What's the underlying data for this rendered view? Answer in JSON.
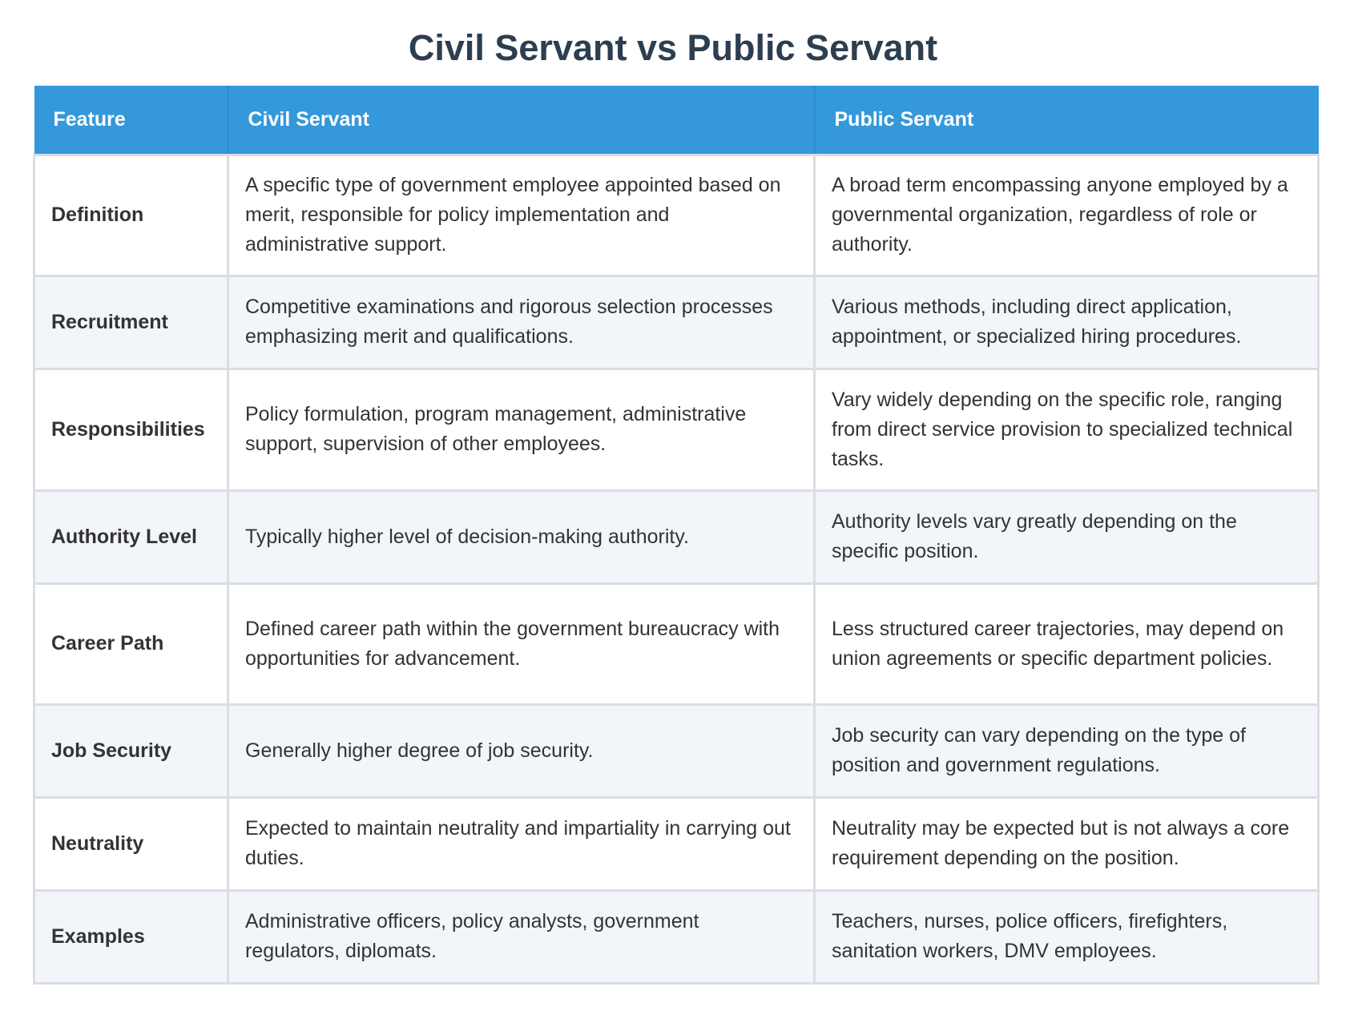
{
  "title": "Civil Servant vs Public Servant",
  "table": {
    "headers": [
      "Feature",
      "Civil Servant",
      "Public Servant"
    ],
    "rows": [
      {
        "feature": "Definition",
        "civil": "A specific type of government employee appointed based on merit, responsible for policy implementation and administrative support.",
        "public": "A broad term encompassing anyone employed by a governmental organization, regardless of role or authority."
      },
      {
        "feature": "Recruitment",
        "civil": "Competitive examinations and rigorous selection processes emphasizing merit and qualifications.",
        "public": "Various methods, including direct application, appointment, or specialized hiring procedures."
      },
      {
        "feature": "Responsibilities",
        "civil": "Policy formulation, program management, administrative support, supervision of other employees.",
        "public": "Vary widely depending on the specific role, ranging from direct service provision to specialized technical tasks."
      },
      {
        "feature": "Authority Level",
        "civil": "Typically higher level of decision-making authority.",
        "public": "Authority levels vary greatly depending on the specific position."
      },
      {
        "feature": "Career Path",
        "civil": "Defined career path within the government bureaucracy with opportunities for advancement.",
        "public": "Less structured career trajectories, may depend on union agreements or specific department policies."
      },
      {
        "feature": "Job Security",
        "civil": "Generally higher degree of job security.",
        "public": "Job security can vary depending on the type of position and government regulations."
      },
      {
        "feature": "Neutrality",
        "civil": "Expected to maintain neutrality and impartiality in carrying out duties.",
        "public": "Neutrality may be expected but is not always a core requirement depending on the position."
      },
      {
        "feature": "Examples",
        "civil": "Administrative officers, policy analysts, government regulators, diplomats.",
        "public": "Teachers, nurses, police officers, firefighters, sanitation workers, DMV employees."
      }
    ]
  }
}
